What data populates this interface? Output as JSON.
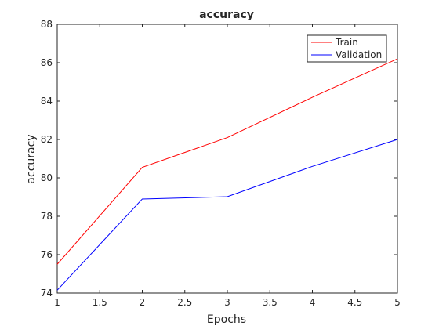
{
  "chart_data": {
    "type": "line",
    "title": "accuracy",
    "xlabel": "Epochs",
    "ylabel": "accuracy",
    "x": [
      1,
      2,
      3,
      4,
      5
    ],
    "series": [
      {
        "name": "Train",
        "color": "#ff0000",
        "values": [
          75.5,
          80.55,
          82.1,
          84.2,
          86.2
        ]
      },
      {
        "name": "Validation",
        "color": "#0000ff",
        "values": [
          74.15,
          78.9,
          79.02,
          80.6,
          82.0
        ]
      }
    ],
    "xlim": [
      1,
      5
    ],
    "ylim": [
      74,
      88
    ],
    "xticks": [
      1,
      1.5,
      2,
      2.5,
      3,
      3.5,
      4,
      4.5,
      5
    ],
    "xtick_labels": [
      "1",
      "1.5",
      "2",
      "2.5",
      "3",
      "3.5",
      "4",
      "4.5",
      "5"
    ],
    "yticks": [
      74,
      76,
      78,
      80,
      82,
      84,
      86,
      88
    ],
    "ytick_labels": [
      "74",
      "76",
      "78",
      "80",
      "82",
      "84",
      "86",
      "88"
    ],
    "grid": false,
    "legend_position": "top-right"
  }
}
